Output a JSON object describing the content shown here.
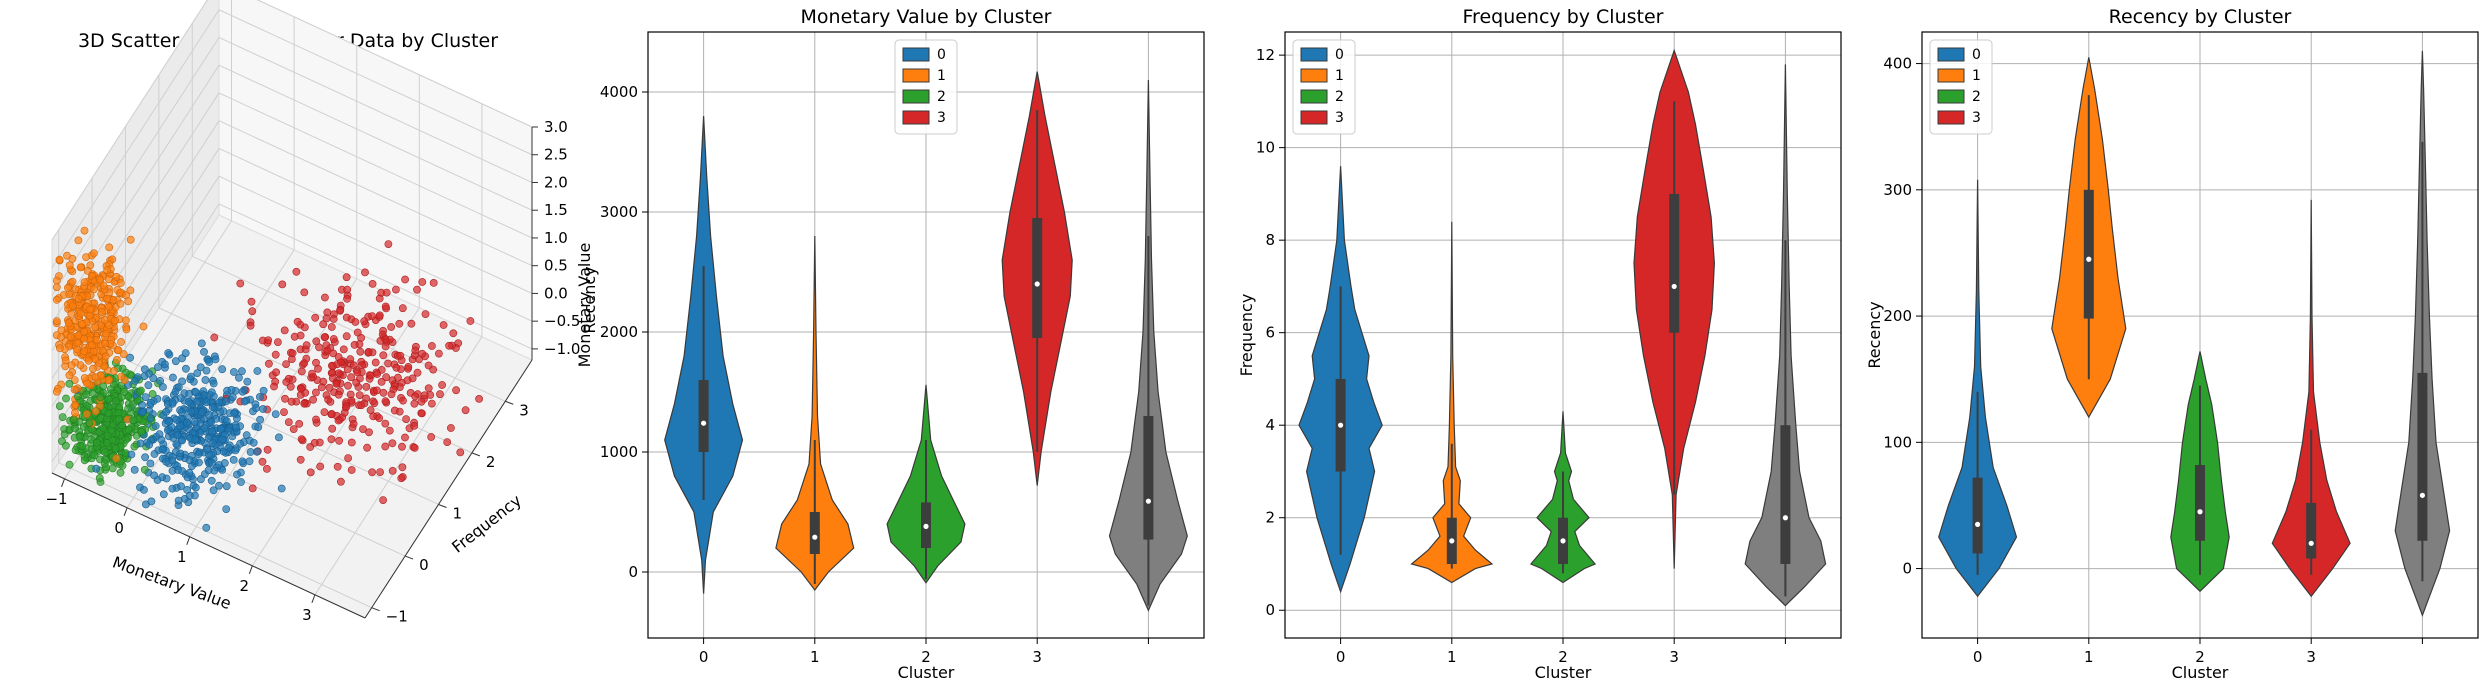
{
  "colors": {
    "0": "#1f77b4",
    "1": "#ff7f0e",
    "2": "#2ca02c",
    "3": "#d62728",
    "all": "#7f7f7f"
  },
  "chart_data": [
    {
      "type": "scatter",
      "dims": 3,
      "title": "3D Scatter Plot of Customer Data by Cluster",
      "xlabel": "Monetary Value",
      "ylabel": "Frequency",
      "zlabel": "Recency",
      "zlabel_overlap_text": "Monetary Value",
      "x_ticks": [
        "−1",
        "0",
        "1",
        "2",
        "3"
      ],
      "y_ticks": [
        "−1",
        "0",
        "1",
        "2",
        "3"
      ],
      "z_ticks": [
        "−1.0",
        "−0.5",
        "0.0",
        "0.5",
        "1.0",
        "1.5",
        "2.0",
        "2.5",
        "3.0"
      ],
      "xlim": [
        -1.2,
        3.8
      ],
      "ylim": [
        -1.2,
        3.8
      ],
      "zlim": [
        -1.2,
        3.0
      ],
      "grid": true,
      "clusters": [
        {
          "cluster": "0",
          "x_center": 0.5,
          "y_center": -0.1,
          "z_center": -0.5
        },
        {
          "cluster": "1",
          "x_center": -0.8,
          "y_center": -0.8,
          "z_center": 1.3
        },
        {
          "cluster": "2",
          "x_center": -0.6,
          "y_center": -0.6,
          "z_center": -0.6
        },
        {
          "cluster": "3",
          "x_center": 2.0,
          "y_center": 1.8,
          "z_center": -0.6
        }
      ]
    },
    {
      "type": "violin",
      "title": "Monetary Value by Cluster",
      "xlabel": "Cluster",
      "ylabel": "Monetary Value",
      "ylim": [
        -550,
        4500
      ],
      "yticks": [
        0,
        1000,
        2000,
        3000,
        4000
      ],
      "categories": [
        "0",
        "1",
        "2",
        "3",
        ""
      ],
      "legend": {
        "placement": "top-center",
        "entries": [
          "0",
          "1",
          "2",
          "3"
        ]
      },
      "grid": true,
      "violins": [
        {
          "cluster": "0",
          "color_key": "0",
          "width": 0.7,
          "q1": 1000,
          "median": 1240,
          "q3": 1600,
          "wlo": 600,
          "whi": 2550,
          "profile": [
            [
              -180,
              0
            ],
            [
              100,
              0.05
            ],
            [
              500,
              0.25
            ],
            [
              800,
              0.75
            ],
            [
              1100,
              1.0
            ],
            [
              1400,
              0.75
            ],
            [
              1800,
              0.5
            ],
            [
              2300,
              0.33
            ],
            [
              2800,
              0.18
            ],
            [
              3300,
              0.08
            ],
            [
              3800,
              0
            ]
          ]
        },
        {
          "cluster": "1",
          "color_key": "1",
          "width": 0.7,
          "q1": 150,
          "median": 290,
          "q3": 500,
          "wlo": -100,
          "whi": 1100,
          "profile": [
            [
              -150,
              0
            ],
            [
              0,
              0.35
            ],
            [
              200,
              1.0
            ],
            [
              400,
              0.85
            ],
            [
              600,
              0.45
            ],
            [
              900,
              0.15
            ],
            [
              1300,
              0.07
            ],
            [
              2000,
              0.03
            ],
            [
              2800,
              0
            ]
          ]
        },
        {
          "cluster": "2",
          "color_key": "2",
          "width": 0.7,
          "q1": 200,
          "median": 380,
          "q3": 580,
          "wlo": -60,
          "whi": 1100,
          "profile": [
            [
              -90,
              0
            ],
            [
              50,
              0.3
            ],
            [
              250,
              0.9
            ],
            [
              400,
              1.0
            ],
            [
              600,
              0.7
            ],
            [
              800,
              0.4
            ],
            [
              1100,
              0.12
            ],
            [
              1560,
              0
            ]
          ]
        },
        {
          "cluster": "3",
          "color_key": "3",
          "width": 0.7,
          "q1": 1950,
          "median": 2400,
          "q3": 2950,
          "wlo": 1000,
          "whi": 3850,
          "profile": [
            [
              720,
              0
            ],
            [
              1000,
              0.1
            ],
            [
              1500,
              0.35
            ],
            [
              1900,
              0.6
            ],
            [
              2300,
              0.85
            ],
            [
              2600,
              0.9
            ],
            [
              3000,
              0.7
            ],
            [
              3400,
              0.45
            ],
            [
              3800,
              0.2
            ],
            [
              4170,
              0
            ]
          ]
        },
        {
          "cluster": "all",
          "color_key": "all",
          "width": 0.7,
          "q1": 270,
          "median": 590,
          "q3": 1300,
          "wlo": -280,
          "whi": 2800,
          "profile": [
            [
              -320,
              0
            ],
            [
              -100,
              0.3
            ],
            [
              150,
              0.85
            ],
            [
              300,
              1.0
            ],
            [
              600,
              0.75
            ],
            [
              1000,
              0.45
            ],
            [
              1500,
              0.25
            ],
            [
              2000,
              0.14
            ],
            [
              2600,
              0.08
            ],
            [
              3300,
              0.04
            ],
            [
              4100,
              0
            ]
          ]
        }
      ]
    },
    {
      "type": "violin",
      "title": "Frequency by Cluster",
      "xlabel": "Cluster",
      "ylabel": "Frequency",
      "ylim": [
        -0.6,
        12.5
      ],
      "yticks": [
        0,
        2,
        4,
        6,
        8,
        10,
        12
      ],
      "categories": [
        "0",
        "1",
        "2",
        "3",
        ""
      ],
      "legend": {
        "placement": "top-left",
        "entries": [
          "0",
          "1",
          "2",
          "3"
        ]
      },
      "grid": true,
      "violins": [
        {
          "cluster": "0",
          "color_key": "0",
          "width": 0.85,
          "q1": 3.0,
          "median": 4.0,
          "q3": 5.0,
          "wlo": 1.2,
          "whi": 7.0,
          "profile": [
            [
              0.4,
              0
            ],
            [
              1.0,
              0.2
            ],
            [
              2.0,
              0.5
            ],
            [
              3.0,
              0.72
            ],
            [
              3.5,
              0.6
            ],
            [
              4.0,
              0.88
            ],
            [
              4.5,
              0.7
            ],
            [
              5.0,
              0.55
            ],
            [
              5.5,
              0.6
            ],
            [
              6.0,
              0.45
            ],
            [
              6.5,
              0.3
            ],
            [
              7.0,
              0.22
            ],
            [
              8.0,
              0.08
            ],
            [
              9.6,
              0
            ]
          ]
        },
        {
          "cluster": "1",
          "color_key": "1",
          "width": 0.85,
          "q1": 1.0,
          "median": 1.5,
          "q3": 2.0,
          "wlo": 0.9,
          "whi": 3.6,
          "profile": [
            [
              0.6,
              0
            ],
            [
              0.9,
              0.5
            ],
            [
              1.0,
              0.85
            ],
            [
              1.3,
              0.5
            ],
            [
              1.6,
              0.25
            ],
            [
              2.0,
              0.4
            ],
            [
              2.3,
              0.15
            ],
            [
              2.8,
              0.18
            ],
            [
              3.1,
              0.08
            ],
            [
              4.0,
              0.05
            ],
            [
              5.5,
              0.02
            ],
            [
              8.4,
              0
            ]
          ]
        },
        {
          "cluster": "2",
          "color_key": "2",
          "width": 0.85,
          "q1": 1.0,
          "median": 1.5,
          "q3": 2.0,
          "wlo": 0.8,
          "whi": 3.0,
          "profile": [
            [
              0.6,
              0
            ],
            [
              0.9,
              0.45
            ],
            [
              1.0,
              0.68
            ],
            [
              1.4,
              0.35
            ],
            [
              1.7,
              0.25
            ],
            [
              2.0,
              0.55
            ],
            [
              2.4,
              0.22
            ],
            [
              2.8,
              0.12
            ],
            [
              3.0,
              0.18
            ],
            [
              3.4,
              0.05
            ],
            [
              4.3,
              0
            ]
          ]
        },
        {
          "cluster": "3",
          "color_key": "3",
          "width": 0.85,
          "q1": 6.0,
          "median": 7.0,
          "q3": 9.0,
          "wlo": 2.5,
          "whi": 11.0,
          "profile": [
            [
              0.9,
              0
            ],
            [
              2.5,
              0.04
            ],
            [
              3.5,
              0.2
            ],
            [
              4.5,
              0.45
            ],
            [
              5.5,
              0.65
            ],
            [
              6.5,
              0.8
            ],
            [
              7.5,
              0.85
            ],
            [
              8.5,
              0.78
            ],
            [
              9.5,
              0.62
            ],
            [
              10.5,
              0.45
            ],
            [
              11.2,
              0.3
            ],
            [
              12.1,
              0
            ]
          ]
        },
        {
          "cluster": "all",
          "color_key": "all",
          "width": 0.85,
          "q1": 1.0,
          "median": 2.0,
          "q3": 4.0,
          "wlo": 0.3,
          "whi": 8.0,
          "profile": [
            [
              0.1,
              0
            ],
            [
              0.5,
              0.4
            ],
            [
              1.0,
              0.85
            ],
            [
              1.5,
              0.75
            ],
            [
              2.0,
              0.5
            ],
            [
              3.0,
              0.3
            ],
            [
              4.0,
              0.22
            ],
            [
              5.5,
              0.12
            ],
            [
              7.0,
              0.08
            ],
            [
              9.0,
              0.04
            ],
            [
              11.8,
              0
            ]
          ]
        }
      ]
    },
    {
      "type": "violin",
      "title": "Recency by Cluster",
      "xlabel": "Cluster",
      "ylabel": "Recency",
      "ylim": [
        -55,
        425
      ],
      "yticks": [
        0,
        100,
        200,
        300,
        400
      ],
      "categories": [
        "0",
        "1",
        "2",
        "3",
        ""
      ],
      "legend": {
        "placement": "top-left",
        "entries": [
          "0",
          "1",
          "2",
          "3"
        ]
      },
      "grid": true,
      "violins": [
        {
          "cluster": "0",
          "color_key": "0",
          "width": 0.7,
          "q1": 12,
          "median": 35,
          "q3": 72,
          "wlo": -5,
          "whi": 140,
          "profile": [
            [
              -22,
              0
            ],
            [
              0,
              0.55
            ],
            [
              25,
              1.0
            ],
            [
              50,
              0.75
            ],
            [
              80,
              0.4
            ],
            [
              120,
              0.2
            ],
            [
              160,
              0.08
            ],
            [
              220,
              0.03
            ],
            [
              308,
              0
            ]
          ]
        },
        {
          "cluster": "1",
          "color_key": "1",
          "width": 0.7,
          "q1": 198,
          "median": 245,
          "q3": 300,
          "wlo": 150,
          "whi": 375,
          "profile": [
            [
              120,
              0
            ],
            [
              150,
              0.55
            ],
            [
              190,
              0.95
            ],
            [
              230,
              0.75
            ],
            [
              270,
              0.6
            ],
            [
              300,
              0.5
            ],
            [
              340,
              0.35
            ],
            [
              380,
              0.15
            ],
            [
              405,
              0
            ]
          ]
        },
        {
          "cluster": "2",
          "color_key": "2",
          "width": 0.7,
          "q1": 22,
          "median": 45,
          "q3": 82,
          "wlo": -5,
          "whi": 145,
          "profile": [
            [
              -18,
              0
            ],
            [
              0,
              0.6
            ],
            [
              25,
              0.75
            ],
            [
              45,
              0.65
            ],
            [
              70,
              0.55
            ],
            [
              100,
              0.45
            ],
            [
              130,
              0.3
            ],
            [
              150,
              0.15
            ],
            [
              172,
              0
            ]
          ]
        },
        {
          "cluster": "3",
          "color_key": "3",
          "width": 0.7,
          "q1": 8,
          "median": 20,
          "q3": 52,
          "wlo": -5,
          "whi": 110,
          "profile": [
            [
              -22,
              0
            ],
            [
              0,
              0.55
            ],
            [
              20,
              1.0
            ],
            [
              45,
              0.65
            ],
            [
              70,
              0.4
            ],
            [
              100,
              0.22
            ],
            [
              140,
              0.06
            ],
            [
              200,
              0.02
            ],
            [
              292,
              0
            ]
          ]
        },
        {
          "cluster": "all",
          "color_key": "all",
          "width": 0.7,
          "q1": 22,
          "median": 58,
          "q3": 155,
          "wlo": -10,
          "whi": 338,
          "profile": [
            [
              -37,
              0
            ],
            [
              0,
              0.45
            ],
            [
              30,
              0.7
            ],
            [
              60,
              0.55
            ],
            [
              100,
              0.35
            ],
            [
              150,
              0.25
            ],
            [
              200,
              0.18
            ],
            [
              260,
              0.12
            ],
            [
              330,
              0.07
            ],
            [
              380,
              0.03
            ],
            [
              410,
              0
            ]
          ]
        }
      ]
    }
  ]
}
